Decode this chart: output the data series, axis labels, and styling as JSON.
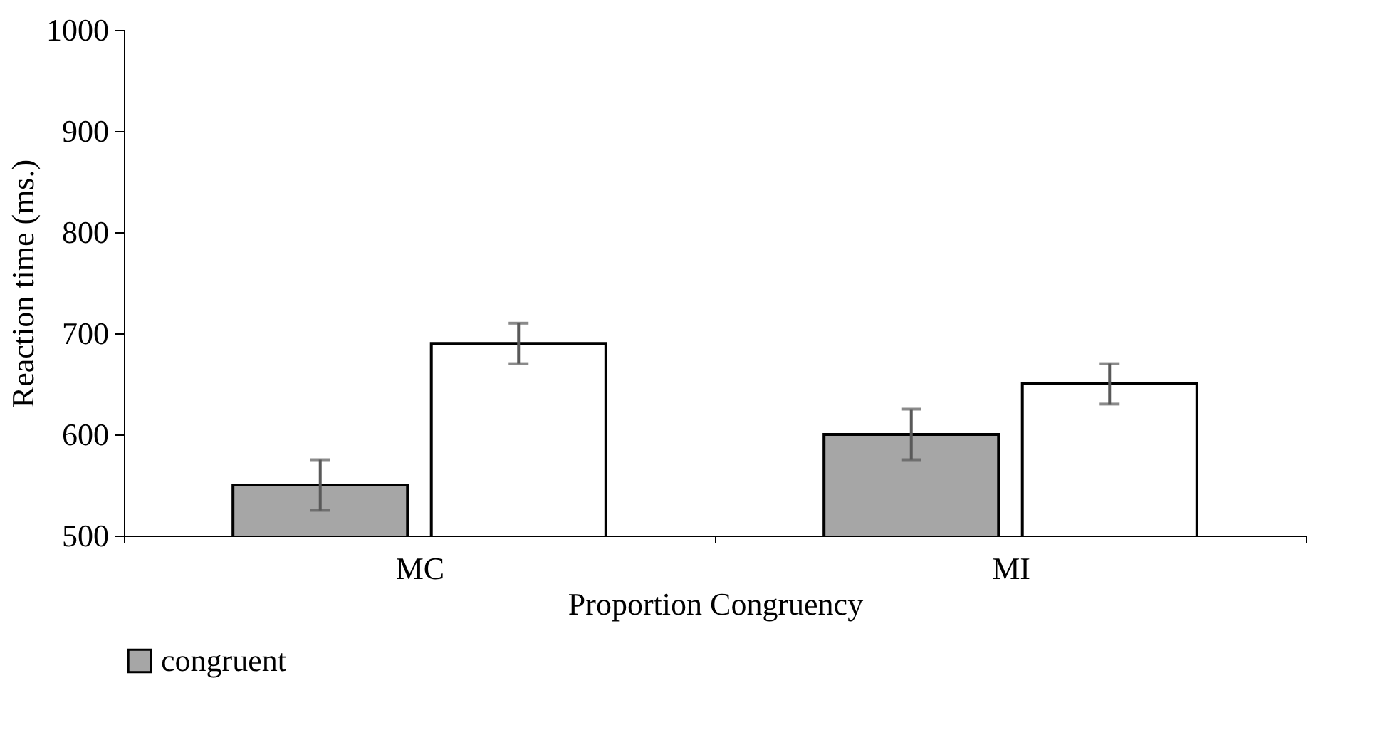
{
  "chart_data": {
    "type": "bar",
    "xlabel": "Proportion Congruency",
    "ylabel": "Reaction time (ms.)",
    "categories": [
      "MC",
      "MI"
    ],
    "series": [
      {
        "name": "congruent",
        "color": "#a6a6a6",
        "values": [
          550,
          600
        ],
        "errors": [
          25,
          25
        ]
      },
      {
        "color": "#ffffff",
        "values": [
          690,
          650
        ],
        "errors": [
          20,
          20
        ]
      }
    ],
    "ylim": [
      500,
      1000
    ],
    "yticks": [
      500,
      600,
      700,
      800,
      900,
      1000
    ],
    "grid": false,
    "legend": "bottom"
  }
}
